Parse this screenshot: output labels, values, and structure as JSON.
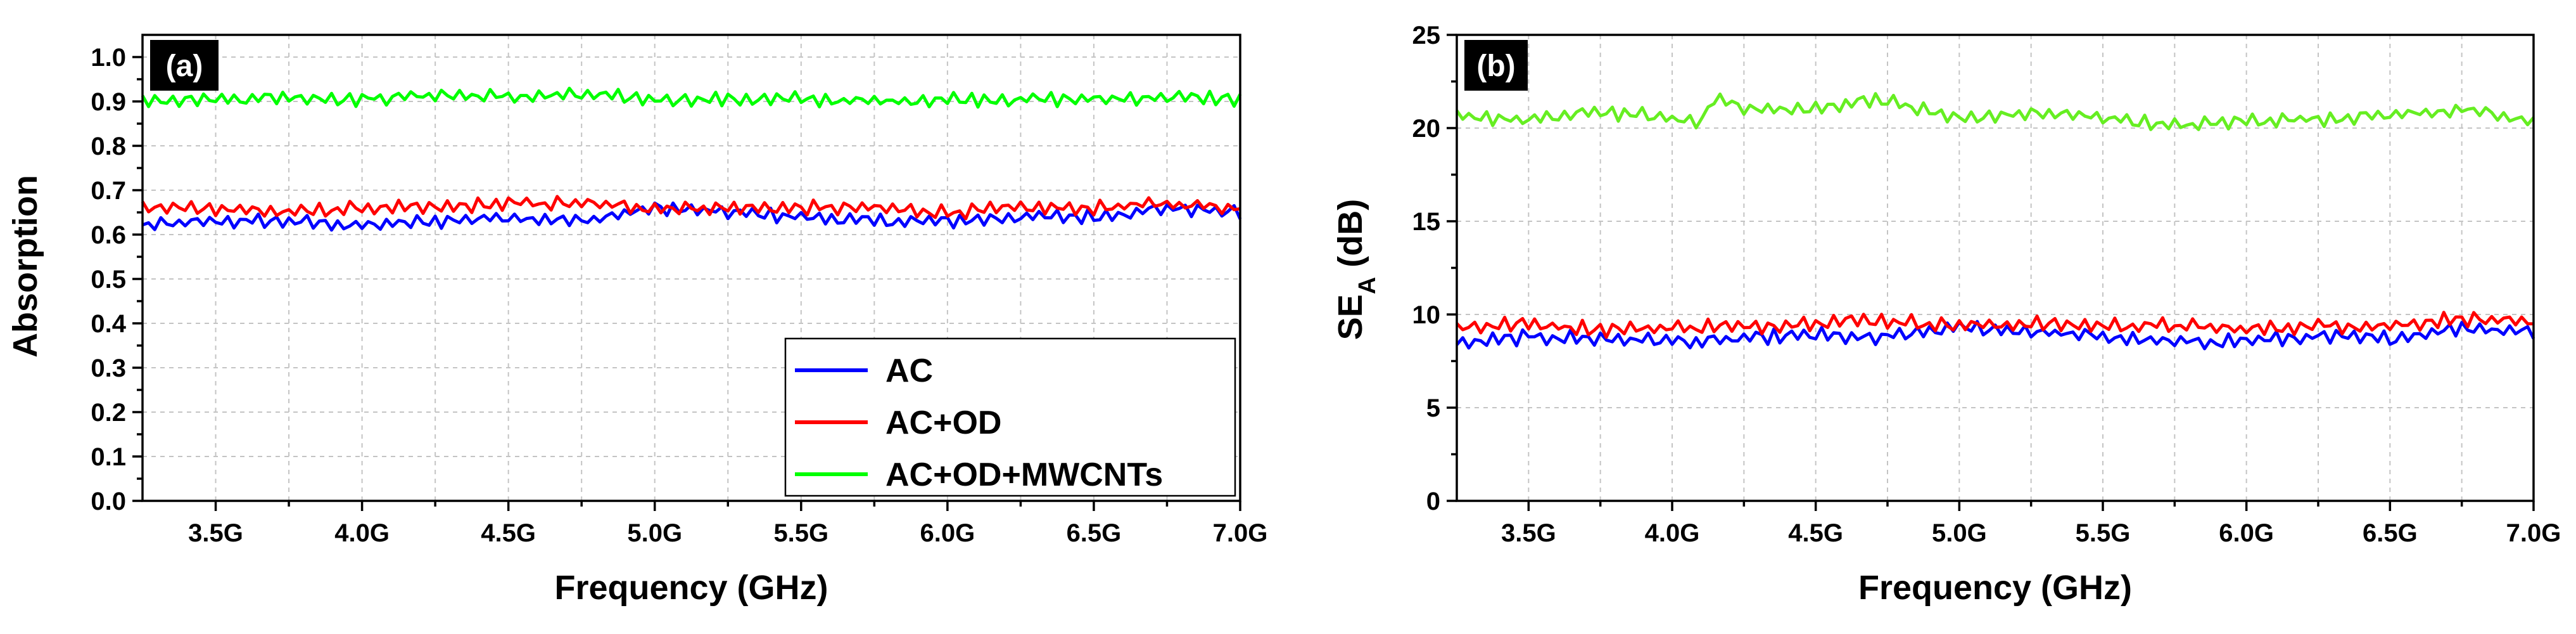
{
  "chart_data": [
    {
      "id": "a",
      "type": "line",
      "panel_label": "(a)",
      "title": "",
      "xlabel": "Frequency (GHz)",
      "ylabel": "Absorption",
      "ylabel_sub": "",
      "ylabel_suffix": "",
      "xlim": [
        3.25,
        7.0
      ],
      "ylim": [
        0.0,
        1.05
      ],
      "x_ticks": [
        3.5,
        4.0,
        4.5,
        5.0,
        5.5,
        6.0,
        6.5,
        7.0
      ],
      "x_tick_labels": [
        "3.5G",
        "4.0G",
        "4.5G",
        "5.0G",
        "5.5G",
        "6.0G",
        "6.5G",
        "7.0G"
      ],
      "y_ticks": [
        0.0,
        0.1,
        0.2,
        0.3,
        0.4,
        0.5,
        0.6,
        0.7,
        0.8,
        0.9,
        1.0
      ],
      "y_tick_labels": [
        "0.0",
        "0.1",
        "0.2",
        "0.3",
        "0.4",
        "0.5",
        "0.6",
        "0.7",
        "0.8",
        "0.9",
        "1.0"
      ],
      "grid": true,
      "legend": "bottom-right",
      "x": [
        3.25,
        3.5,
        3.75,
        4.0,
        4.25,
        4.5,
        4.75,
        5.0,
        5.25,
        5.5,
        5.75,
        6.0,
        6.25,
        6.5,
        6.75,
        7.0
      ],
      "series": [
        {
          "name": "AC",
          "color": "#0000ff",
          "values": [
            0.62,
            0.63,
            0.63,
            0.62,
            0.63,
            0.64,
            0.63,
            0.66,
            0.65,
            0.64,
            0.63,
            0.63,
            0.64,
            0.64,
            0.66,
            0.65
          ]
        },
        {
          "name": "AC+OD",
          "color": "#ff0000",
          "values": [
            0.66,
            0.66,
            0.65,
            0.66,
            0.66,
            0.67,
            0.67,
            0.66,
            0.66,
            0.66,
            0.66,
            0.65,
            0.66,
            0.66,
            0.67,
            0.66
          ]
        },
        {
          "name": "AC+OD+MWCNTs",
          "color": "#00ff00",
          "values": [
            0.905,
            0.905,
            0.91,
            0.905,
            0.915,
            0.91,
            0.915,
            0.905,
            0.905,
            0.905,
            0.9,
            0.905,
            0.905,
            0.905,
            0.91,
            0.905
          ]
        }
      ]
    },
    {
      "id": "b",
      "type": "line",
      "panel_label": "(b)",
      "title": "",
      "xlabel": "Frequency (GHz)",
      "ylabel": "SE",
      "ylabel_sub": "A",
      "ylabel_suffix": " (dB)",
      "xlim": [
        3.25,
        7.0
      ],
      "ylim": [
        0,
        25
      ],
      "x_ticks": [
        3.5,
        4.0,
        4.5,
        5.0,
        5.5,
        6.0,
        6.5,
        7.0
      ],
      "x_tick_labels": [
        "3.5G",
        "4.0G",
        "4.5G",
        "5.0G",
        "5.5G",
        "6.0G",
        "6.5G",
        "7.0G"
      ],
      "y_ticks": [
        0,
        5,
        10,
        15,
        20,
        25
      ],
      "y_tick_labels": [
        "0",
        "5",
        "10",
        "15",
        "20",
        "25"
      ],
      "grid": true,
      "legend": "none",
      "x": [
        3.25,
        3.5,
        3.75,
        4.0,
        4.1,
        4.15,
        4.25,
        4.5,
        4.7,
        5.0,
        5.25,
        5.5,
        5.75,
        6.0,
        6.25,
        6.5,
        6.75,
        7.0
      ],
      "series": [
        {
          "name": "AC",
          "color": "#0000ff",
          "values": [
            8.4,
            8.8,
            8.7,
            8.6,
            8.5,
            8.6,
            8.7,
            8.9,
            8.7,
            9.3,
            9.1,
            8.8,
            8.5,
            8.6,
            8.8,
            8.7,
            9.3,
            9.1
          ]
        },
        {
          "name": "AC+OD",
          "color": "#ff0000",
          "values": [
            9.3,
            9.5,
            9.2,
            9.3,
            9.3,
            9.4,
            9.3,
            9.6,
            9.7,
            9.4,
            9.5,
            9.4,
            9.4,
            9.2,
            9.4,
            9.4,
            9.8,
            9.5
          ]
        },
        {
          "name": "AC+OD+MWCNTs",
          "color": "#66ee22",
          "values": [
            20.7,
            20.4,
            20.9,
            20.5,
            20.3,
            21.8,
            21.0,
            21.0,
            21.6,
            20.5,
            20.8,
            20.6,
            20.1,
            20.4,
            20.5,
            20.7,
            21.0,
            20.3
          ]
        }
      ]
    }
  ]
}
